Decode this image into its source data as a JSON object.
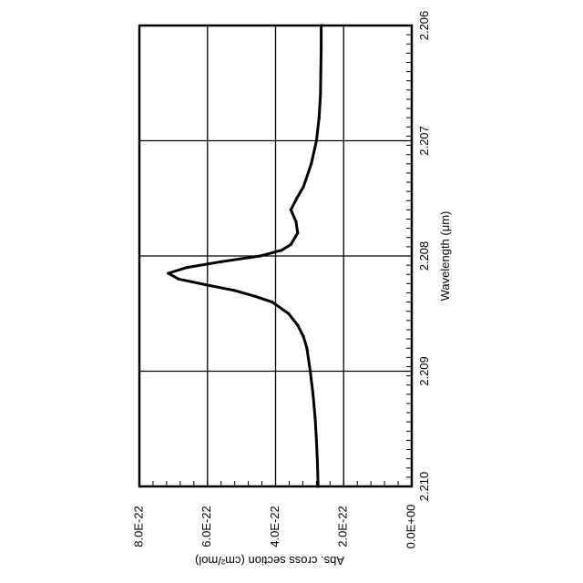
{
  "chart_data": {
    "type": "line",
    "orientation": "rotated 90 degrees counter-clockwise",
    "xlabel": "Wavelength (μm)",
    "ylabel": "Abs. cross section (cm²/mol)",
    "xlim": [
      2.206,
      2.21
    ],
    "ylim": [
      0,
      8e-22
    ],
    "x_ticks": [
      "2.206",
      "2.207",
      "2.208",
      "2.209",
      "2.210"
    ],
    "y_ticks": [
      "0.0E+00",
      "2.0E-22",
      "4.0E-22",
      "6.0E-22",
      "8.0E-22"
    ],
    "grid": true,
    "series": [
      {
        "x": [
          2.206,
          2.2062,
          2.2064,
          2.2066,
          2.2068,
          2.207,
          2.2072,
          2.2074,
          2.2075,
          2.2076,
          2.2077,
          2.2078,
          2.2079,
          2.20795,
          2.208,
          2.20805,
          2.2081,
          2.20815,
          2.2082,
          2.20825,
          2.2083,
          2.20835,
          2.2084,
          2.2085,
          2.2086,
          2.2087,
          2.2088,
          2.209,
          2.2092,
          2.2094,
          2.2096,
          2.2098,
          2.21
        ],
        "y": [
          2.66e-22,
          2.66e-22,
          2.67e-22,
          2.68e-22,
          2.72e-22,
          2.8e-22,
          2.95e-22,
          3.18e-22,
          3.38e-22,
          3.55e-22,
          3.4e-22,
          3.35e-22,
          3.55e-22,
          3.82e-22,
          4.45e-22,
          5.6e-22,
          6.6e-22,
          7.15e-22,
          6.85e-22,
          6.05e-22,
          5.2e-22,
          4.6e-22,
          4.1e-22,
          3.62e-22,
          3.35e-22,
          3.18e-22,
          3.08e-22,
          2.98e-22,
          2.9e-22,
          2.84e-22,
          2.8e-22,
          2.77e-22,
          2.75e-22
        ]
      }
    ]
  }
}
